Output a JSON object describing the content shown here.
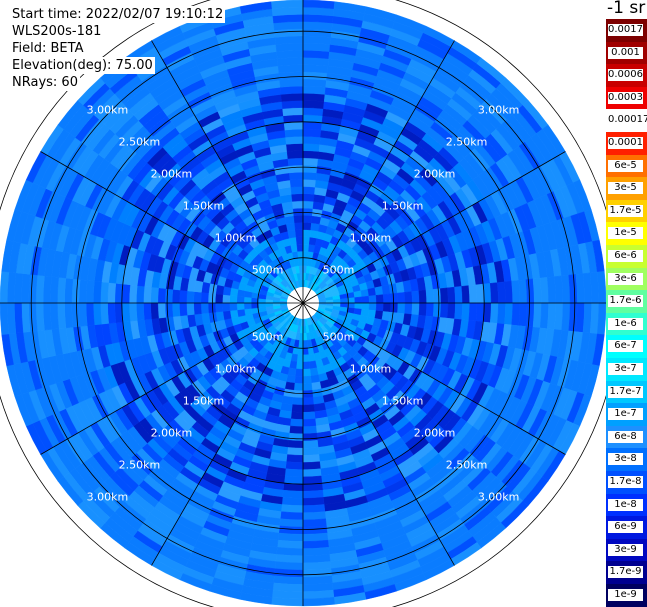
{
  "info": {
    "start_time": "Start time: 2022/02/07 19:10:12",
    "instrument": "WLS200s-181",
    "field": "Field: BETA",
    "elevation": "Elevation(deg): 75.00",
    "nrays": "NRays: 60"
  },
  "colorbar": {
    "unit_label": "-1 sr",
    "labels": [
      "0.0017",
      "0.001",
      "0.0006",
      "0.0003",
      "0.00017",
      "0.0001",
      "6e-5",
      "3e-5",
      "1.7e-5",
      "1e-5",
      "6e-6",
      "3e-6",
      "1.7e-6",
      "1e-6",
      "6e-7",
      "3e-7",
      "1.7e-7",
      "1e-7",
      "6e-8",
      "3e-8",
      "1.7e-8",
      "1e-8",
      "6e-9",
      "3e-9",
      "1.7e-9",
      "1e-9"
    ],
    "colors": [
      "#7d0000",
      "#a00000",
      "#c80000",
      "#ee0000",
      "#ffffff",
      "#ff2000",
      "#ff7000",
      "#ffa000",
      "#ffd000",
      "#ffff00",
      "#c8ff30",
      "#a0ff60",
      "#60ffa0",
      "#30ffd0",
      "#00ffff",
      "#00e8ff",
      "#00c8ff",
      "#00a0ff",
      "#1e90ff",
      "#0070ff",
      "#0050ff",
      "#0030ff",
      "#0018e0",
      "#0008c0",
      "#000090",
      "#000060"
    ]
  },
  "chart_data": {
    "type": "heatmap",
    "projection": "polar PPI",
    "range_rings": [
      "500m",
      "1.00km",
      "1.50km",
      "2.00km",
      "2.50km",
      "3.00km"
    ],
    "num_rays": 60,
    "field": "BETA",
    "elevation_deg": 75.0,
    "dominant_value_range": [
      "3e-8",
      "1.7e-7"
    ],
    "grid": true
  }
}
